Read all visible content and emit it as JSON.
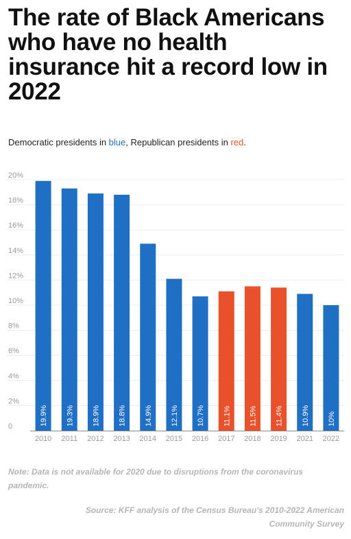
{
  "header": {
    "title": "The rate of Black Americans who have no health insurance hit a record low in 2022"
  },
  "subtitle": {
    "prefix": "Democratic presidents in ",
    "blue_word": "blue",
    "middle": ", Republican presidents in ",
    "red_word": "red",
    "suffix": "."
  },
  "colors": {
    "democratic": "#1f6fc5",
    "republican": "#e8512b",
    "axis_text": "#9a9a9a",
    "grid": "#ececec"
  },
  "chart_data": {
    "type": "bar",
    "categories": [
      "2010",
      "2011",
      "2012",
      "2013",
      "2014",
      "2015",
      "2016",
      "2017",
      "2018",
      "2019",
      "2021",
      "2022"
    ],
    "values": [
      19.9,
      19.3,
      18.9,
      18.8,
      14.9,
      12.1,
      10.7,
      11.1,
      11.5,
      11.4,
      10.9,
      10.0
    ],
    "value_labels": [
      "19.9%",
      "19.3%",
      "18.9%",
      "18.8%",
      "14.9%",
      "12.1%",
      "10.7%",
      "11.1%",
      "11.5%",
      "11.4%",
      "10.9%",
      "10%"
    ],
    "party": [
      "D",
      "D",
      "D",
      "D",
      "D",
      "D",
      "D",
      "R",
      "R",
      "R",
      "D",
      "D"
    ],
    "ylim": [
      0,
      20
    ],
    "yticks": [
      {
        "value": 0,
        "label": "0"
      },
      {
        "value": 2,
        "label": "2%"
      },
      {
        "value": 4,
        "label": "4%"
      },
      {
        "value": 6,
        "label": "6%"
      },
      {
        "value": 8,
        "label": "8%"
      },
      {
        "value": 10,
        "label": "10%"
      },
      {
        "value": 12,
        "label": "12%"
      },
      {
        "value": 14,
        "label": "14%"
      },
      {
        "value": 16,
        "label": "16%"
      },
      {
        "value": 18,
        "label": "18%"
      },
      {
        "value": 20,
        "label": "20%"
      }
    ],
    "grid": true,
    "xlabel": "",
    "ylabel": ""
  },
  "footer": {
    "note": "Note: Data is not available for 2020 due to disruptions from the coronavirus pandemic.",
    "source": "Source: KFF analysis of the Census Bureau's 2010-2022 American Community Survey"
  }
}
